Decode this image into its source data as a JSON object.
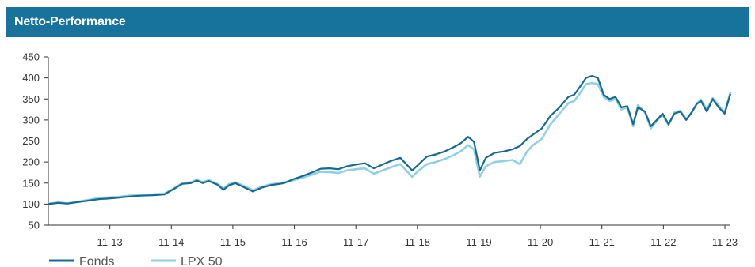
{
  "header": {
    "title": "Netto-Performance"
  },
  "colors": {
    "header_bg": "#17729c",
    "fonds": "#17698f",
    "lpx": "#8fd0e3",
    "axis": "#333333"
  },
  "chart_data": {
    "type": "line",
    "title": "Netto-Performance",
    "xlabel": "",
    "ylabel": "",
    "ylim": [
      50,
      450
    ],
    "yticks": [
      50,
      100,
      150,
      200,
      250,
      300,
      350,
      400,
      450
    ],
    "xlim": [
      2012.83,
      2023.92
    ],
    "xticks": [
      {
        "x": 2013.83,
        "label": "11-13"
      },
      {
        "x": 2014.83,
        "label": "11-14"
      },
      {
        "x": 2015.83,
        "label": "11-15"
      },
      {
        "x": 2016.83,
        "label": "11-16"
      },
      {
        "x": 2017.83,
        "label": "11-17"
      },
      {
        "x": 2018.83,
        "label": "11-18"
      },
      {
        "x": 2019.83,
        "label": "11-19"
      },
      {
        "x": 2020.83,
        "label": "11-20"
      },
      {
        "x": 2021.83,
        "label": "11-21"
      },
      {
        "x": 2022.83,
        "label": "11-22"
      },
      {
        "x": 2023.83,
        "label": "11-23"
      }
    ],
    "grid": false,
    "legend_position": "bottom-left",
    "series": [
      {
        "name": "Fonds",
        "color": "#17698f",
        "points": [
          [
            2012.83,
            100
          ],
          [
            2013.0,
            103
          ],
          [
            2013.15,
            101
          ],
          [
            2013.3,
            104
          ],
          [
            2013.5,
            108
          ],
          [
            2013.7,
            112
          ],
          [
            2013.83,
            113
          ],
          [
            2014.0,
            115
          ],
          [
            2014.2,
            118
          ],
          [
            2014.4,
            120
          ],
          [
            2014.6,
            121
          ],
          [
            2014.8,
            123
          ],
          [
            2014.95,
            135
          ],
          [
            2015.1,
            148
          ],
          [
            2015.25,
            150
          ],
          [
            2015.35,
            156
          ],
          [
            2015.45,
            150
          ],
          [
            2015.55,
            155
          ],
          [
            2015.7,
            146
          ],
          [
            2015.8,
            134
          ],
          [
            2015.9,
            145
          ],
          [
            2016.0,
            150
          ],
          [
            2016.15,
            140
          ],
          [
            2016.3,
            130
          ],
          [
            2016.45,
            139
          ],
          [
            2016.6,
            145
          ],
          [
            2016.75,
            148
          ],
          [
            2016.83,
            150
          ],
          [
            2017.0,
            160
          ],
          [
            2017.15,
            167
          ],
          [
            2017.3,
            175
          ],
          [
            2017.45,
            184
          ],
          [
            2017.6,
            185
          ],
          [
            2017.75,
            183
          ],
          [
            2017.9,
            190
          ],
          [
            2018.05,
            194
          ],
          [
            2018.2,
            197
          ],
          [
            2018.35,
            185
          ],
          [
            2018.5,
            194
          ],
          [
            2018.65,
            203
          ],
          [
            2018.8,
            210
          ],
          [
            2018.9,
            195
          ],
          [
            2019.0,
            180
          ],
          [
            2019.1,
            193
          ],
          [
            2019.25,
            213
          ],
          [
            2019.4,
            218
          ],
          [
            2019.55,
            225
          ],
          [
            2019.7,
            235
          ],
          [
            2019.83,
            245
          ],
          [
            2019.95,
            260
          ],
          [
            2020.05,
            248
          ],
          [
            2020.15,
            180
          ],
          [
            2020.25,
            210
          ],
          [
            2020.4,
            222
          ],
          [
            2020.55,
            225
          ],
          [
            2020.7,
            230
          ],
          [
            2020.83,
            238
          ],
          [
            2020.95,
            255
          ],
          [
            2021.05,
            265
          ],
          [
            2021.2,
            280
          ],
          [
            2021.35,
            310
          ],
          [
            2021.5,
            330
          ],
          [
            2021.65,
            355
          ],
          [
            2021.75,
            360
          ],
          [
            2021.83,
            375
          ],
          [
            2021.95,
            400
          ],
          [
            2022.05,
            405
          ],
          [
            2022.15,
            400
          ],
          [
            2022.25,
            360
          ],
          [
            2022.35,
            350
          ],
          [
            2022.45,
            355
          ],
          [
            2022.55,
            330
          ],
          [
            2022.65,
            333
          ],
          [
            2022.75,
            290
          ],
          [
            2022.83,
            330
          ],
          [
            2022.95,
            320
          ],
          [
            2023.05,
            285
          ],
          [
            2023.15,
            300
          ],
          [
            2023.25,
            315
          ],
          [
            2023.35,
            290
          ],
          [
            2023.45,
            315
          ],
          [
            2023.55,
            320
          ],
          [
            2023.65,
            300
          ],
          [
            2023.75,
            320
          ],
          [
            2023.83,
            338
          ],
          [
            2023.9,
            345
          ],
          [
            2024.0,
            320
          ],
          [
            2024.1,
            350
          ],
          [
            2024.2,
            330
          ],
          [
            2024.3,
            315
          ],
          [
            2024.4,
            362
          ]
        ]
      },
      {
        "name": "LPX 50",
        "color": "#8fd0e3",
        "points": [
          [
            2012.83,
            101
          ],
          [
            2013.0,
            104
          ],
          [
            2013.15,
            102
          ],
          [
            2013.3,
            105
          ],
          [
            2013.5,
            110
          ],
          [
            2013.7,
            115
          ],
          [
            2013.83,
            116
          ],
          [
            2014.0,
            117
          ],
          [
            2014.2,
            120
          ],
          [
            2014.4,
            122
          ],
          [
            2014.6,
            123
          ],
          [
            2014.8,
            125
          ],
          [
            2014.95,
            137
          ],
          [
            2015.1,
            150
          ],
          [
            2015.25,
            152
          ],
          [
            2015.35,
            158
          ],
          [
            2015.45,
            152
          ],
          [
            2015.55,
            157
          ],
          [
            2015.7,
            148
          ],
          [
            2015.8,
            137
          ],
          [
            2015.9,
            148
          ],
          [
            2016.0,
            152
          ],
          [
            2016.15,
            143
          ],
          [
            2016.3,
            133
          ],
          [
            2016.45,
            141
          ],
          [
            2016.6,
            147
          ],
          [
            2016.75,
            150
          ],
          [
            2016.83,
            152
          ],
          [
            2017.0,
            157
          ],
          [
            2017.15,
            163
          ],
          [
            2017.3,
            170
          ],
          [
            2017.45,
            177
          ],
          [
            2017.6,
            176
          ],
          [
            2017.75,
            174
          ],
          [
            2017.9,
            180
          ],
          [
            2018.05,
            183
          ],
          [
            2018.2,
            185
          ],
          [
            2018.35,
            172
          ],
          [
            2018.5,
            180
          ],
          [
            2018.65,
            188
          ],
          [
            2018.8,
            195
          ],
          [
            2018.9,
            180
          ],
          [
            2019.0,
            165
          ],
          [
            2019.1,
            178
          ],
          [
            2019.25,
            195
          ],
          [
            2019.4,
            200
          ],
          [
            2019.55,
            207
          ],
          [
            2019.7,
            216
          ],
          [
            2019.83,
            226
          ],
          [
            2019.95,
            240
          ],
          [
            2020.05,
            230
          ],
          [
            2020.15,
            165
          ],
          [
            2020.25,
            190
          ],
          [
            2020.4,
            200
          ],
          [
            2020.55,
            202
          ],
          [
            2020.7,
            205
          ],
          [
            2020.83,
            195
          ],
          [
            2020.95,
            225
          ],
          [
            2021.05,
            240
          ],
          [
            2021.2,
            255
          ],
          [
            2021.35,
            290
          ],
          [
            2021.5,
            315
          ],
          [
            2021.65,
            340
          ],
          [
            2021.75,
            345
          ],
          [
            2021.83,
            360
          ],
          [
            2021.95,
            385
          ],
          [
            2022.05,
            388
          ],
          [
            2022.15,
            385
          ],
          [
            2022.25,
            355
          ],
          [
            2022.35,
            345
          ],
          [
            2022.45,
            350
          ],
          [
            2022.55,
            325
          ],
          [
            2022.65,
            330
          ],
          [
            2022.75,
            285
          ],
          [
            2022.83,
            335
          ],
          [
            2022.95,
            318
          ],
          [
            2023.05,
            280
          ],
          [
            2023.15,
            298
          ],
          [
            2023.25,
            312
          ],
          [
            2023.35,
            288
          ],
          [
            2023.45,
            318
          ],
          [
            2023.55,
            322
          ],
          [
            2023.65,
            302
          ],
          [
            2023.75,
            318
          ],
          [
            2023.83,
            340
          ],
          [
            2023.9,
            348
          ],
          [
            2024.0,
            325
          ],
          [
            2024.1,
            352
          ],
          [
            2024.2,
            335
          ],
          [
            2024.3,
            318
          ],
          [
            2024.4,
            366
          ]
        ]
      }
    ]
  }
}
